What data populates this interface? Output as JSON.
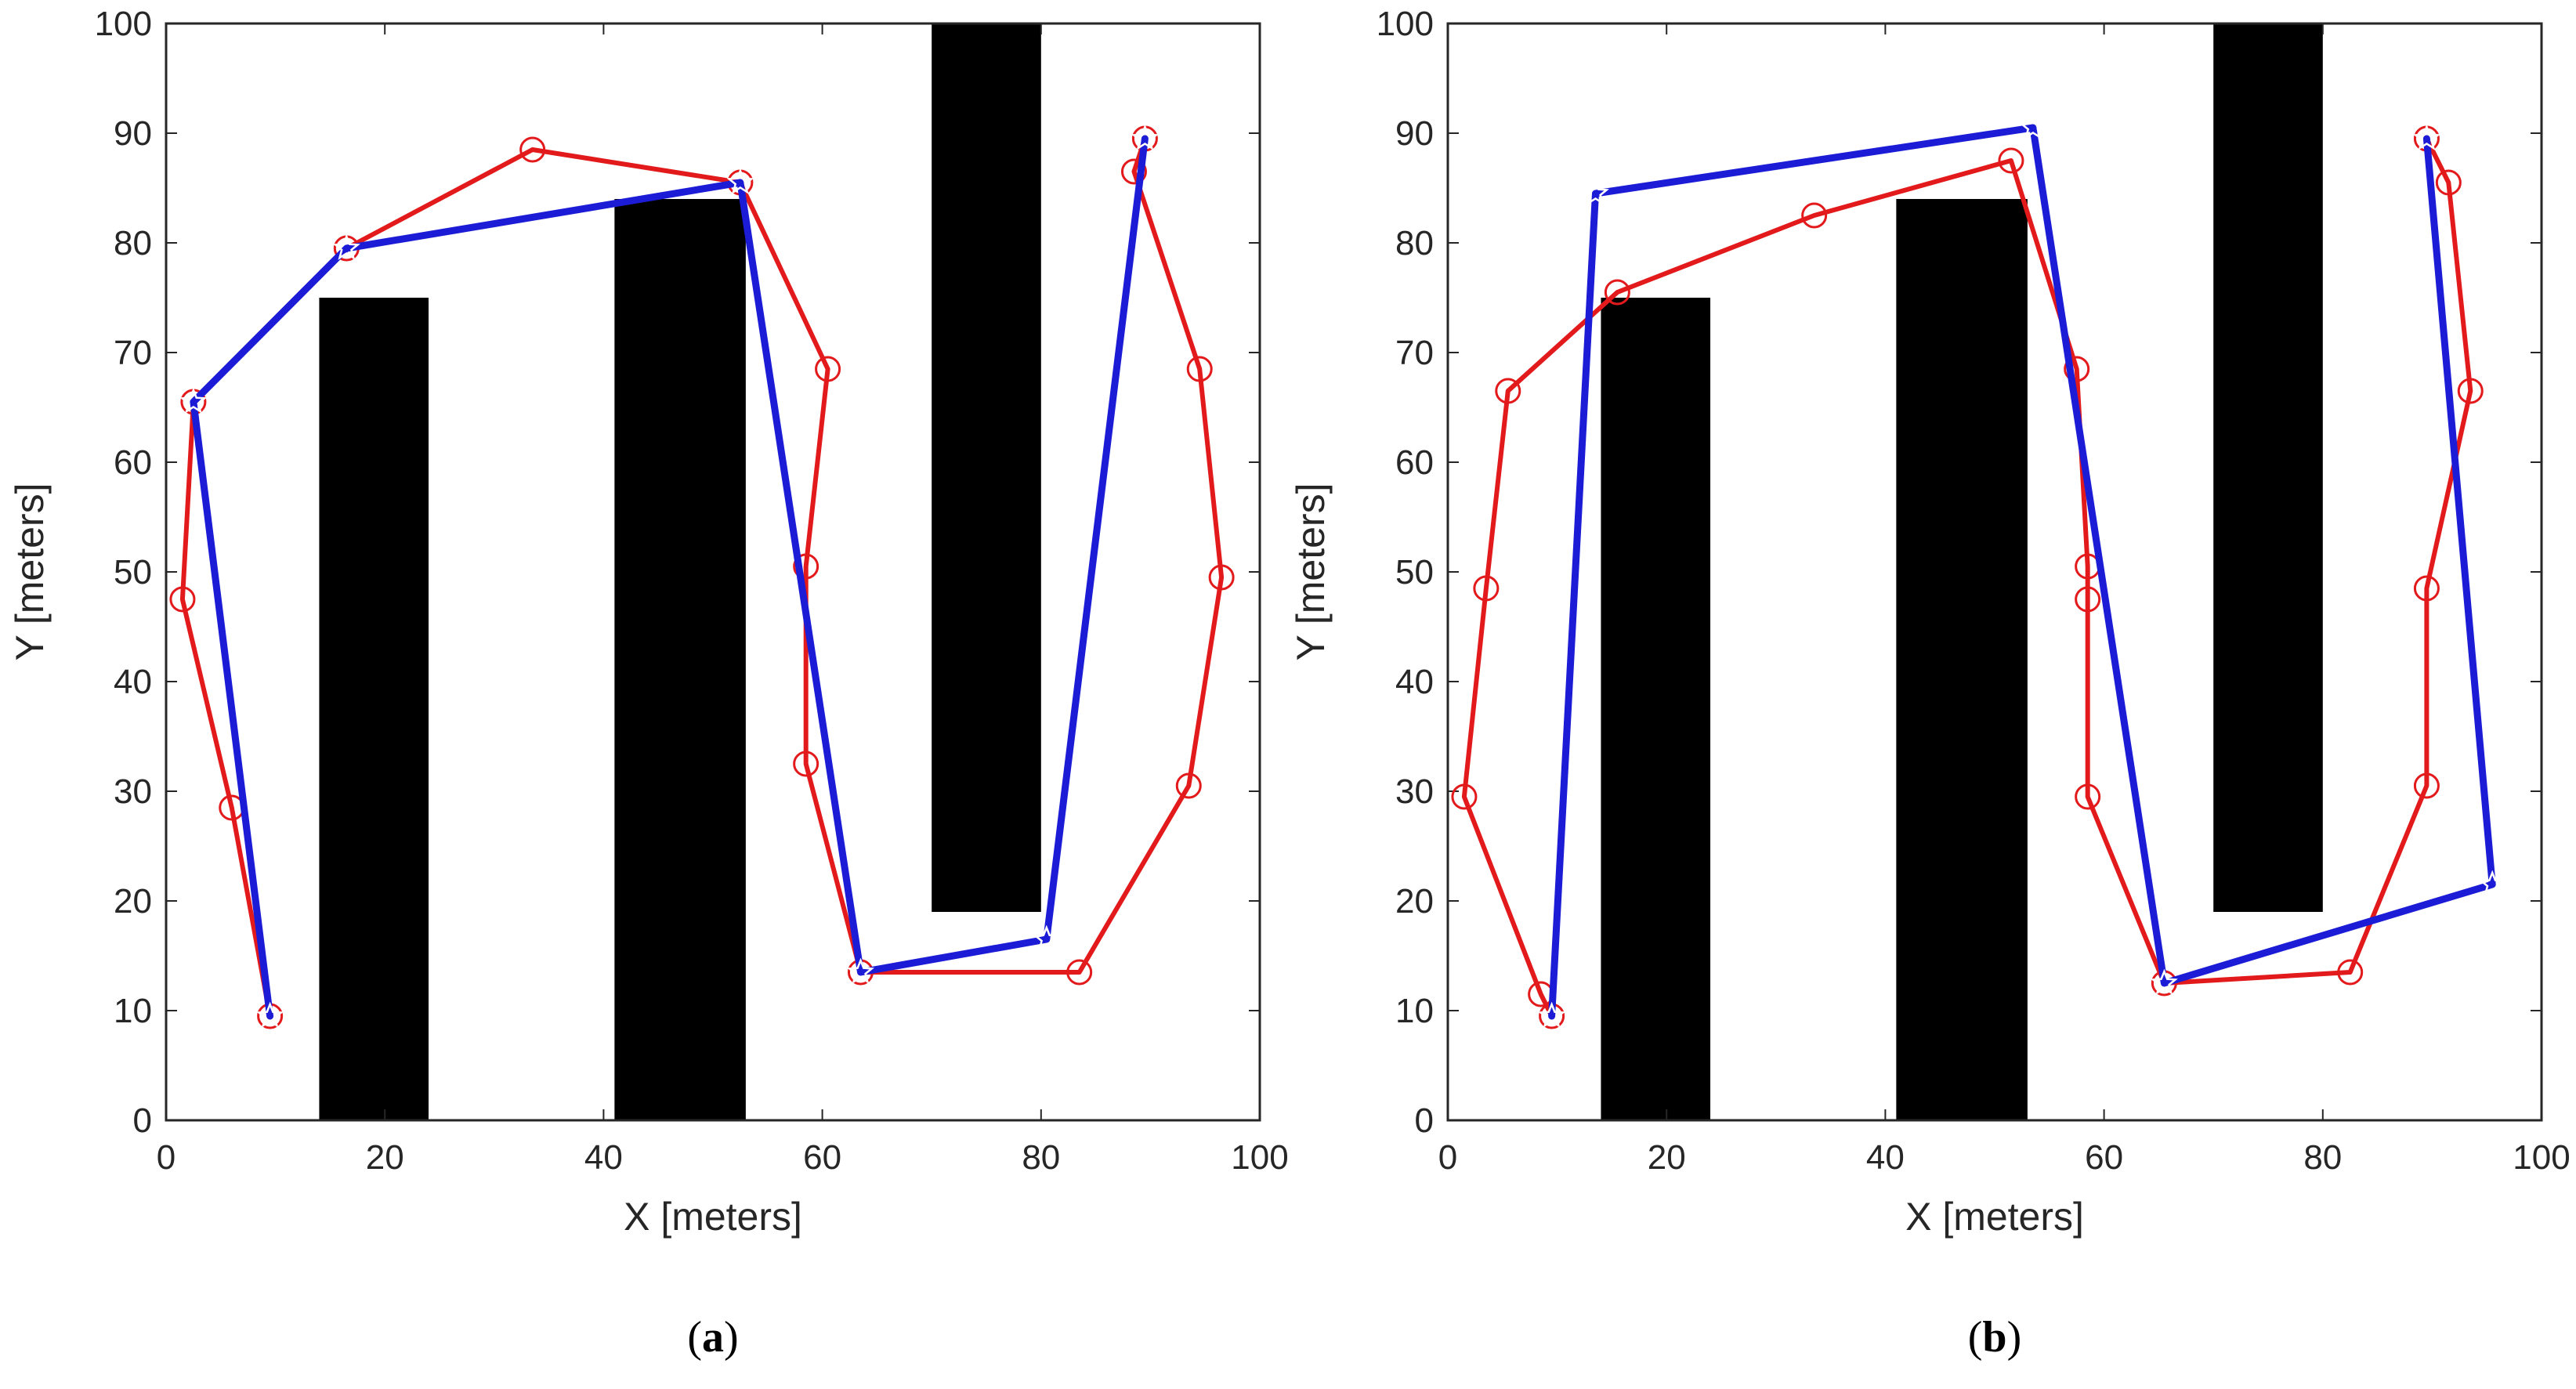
{
  "chart_data": [
    {
      "type": "line",
      "panel": "a",
      "caption_letter": "a",
      "caption_open": "(",
      "caption_close": ")",
      "xlabel": "X [meters]",
      "ylabel": "Y [meters]",
      "xlim": [
        0,
        100
      ],
      "ylim": [
        0,
        100
      ],
      "xticks": [
        0,
        20,
        40,
        60,
        80,
        100
      ],
      "yticks": [
        0,
        10,
        20,
        30,
        40,
        50,
        60,
        70,
        80,
        90,
        100
      ],
      "obstacles": [
        {
          "x0": 14,
          "x1": 24,
          "y0": 0,
          "y1": 75
        },
        {
          "x0": 41,
          "x1": 53,
          "y0": 0,
          "y1": 84
        },
        {
          "x0": 70,
          "x1": 80,
          "y0": 19,
          "y1": 100
        }
      ],
      "series": [
        {
          "name": "red-path",
          "color": "#e31a1c",
          "marker": "circle",
          "points": [
            [
              9.5,
              9.5
            ],
            [
              6,
              28.5
            ],
            [
              1.5,
              47.5
            ],
            [
              2.5,
              65.5
            ],
            [
              16.5,
              79.5
            ],
            [
              33.5,
              88.5
            ],
            [
              52.5,
              85.5
            ],
            [
              60.5,
              68.5
            ],
            [
              58.5,
              50.5
            ],
            [
              58.5,
              32.5
            ],
            [
              63.5,
              13.5
            ],
            [
              83.5,
              13.5
            ],
            [
              93.5,
              30.5
            ],
            [
              96.5,
              49.5
            ],
            [
              94.5,
              68.5
            ],
            [
              88.5,
              86.5
            ],
            [
              89.5,
              89.5
            ]
          ]
        },
        {
          "name": "blue-path",
          "color": "#1c1cd6",
          "marker": "star",
          "points": [
            [
              9.5,
              9.5
            ],
            [
              2.5,
              65.5
            ],
            [
              16.5,
              79.5
            ],
            [
              52.5,
              85.5
            ],
            [
              63.5,
              13.5
            ],
            [
              80.5,
              16.5
            ],
            [
              89.5,
              89.5
            ]
          ]
        }
      ]
    },
    {
      "type": "line",
      "panel": "b",
      "caption_letter": "b",
      "caption_open": "(",
      "caption_close": ")",
      "xlabel": "X [meters]",
      "ylabel": "Y [meters]",
      "xlim": [
        0,
        100
      ],
      "ylim": [
        0,
        100
      ],
      "xticks": [
        0,
        20,
        40,
        60,
        80,
        100
      ],
      "yticks": [
        0,
        10,
        20,
        30,
        40,
        50,
        60,
        70,
        80,
        90,
        100
      ],
      "obstacles": [
        {
          "x0": 14,
          "x1": 24,
          "y0": 0,
          "y1": 75
        },
        {
          "x0": 41,
          "x1": 53,
          "y0": 0,
          "y1": 84
        },
        {
          "x0": 70,
          "x1": 80,
          "y0": 19,
          "y1": 100
        }
      ],
      "series": [
        {
          "name": "red-path",
          "color": "#e31a1c",
          "marker": "circle",
          "points": [
            [
              9.5,
              9.5
            ],
            [
              8.5,
              11.5
            ],
            [
              1.5,
              29.5
            ],
            [
              3.5,
              48.5
            ],
            [
              5.5,
              66.5
            ],
            [
              15.5,
              75.5
            ],
            [
              33.5,
              82.5
            ],
            [
              51.5,
              87.5
            ],
            [
              57.5,
              68.5
            ],
            [
              58.5,
              50.5
            ],
            [
              58.5,
              47.5
            ],
            [
              58.5,
              29.5
            ],
            [
              65.5,
              12.5
            ],
            [
              82.5,
              13.5
            ],
            [
              89.5,
              30.5
            ],
            [
              89.5,
              48.5
            ],
            [
              93.5,
              66.5
            ],
            [
              91.5,
              85.5
            ],
            [
              89.5,
              89.5
            ]
          ]
        },
        {
          "name": "blue-path",
          "color": "#1c1cd6",
          "marker": "star",
          "points": [
            [
              9.5,
              9.5
            ],
            [
              13.5,
              84.5
            ],
            [
              53.5,
              90.5
            ],
            [
              65.5,
              12.5
            ],
            [
              95.5,
              21.5
            ],
            [
              89.5,
              89.5
            ]
          ]
        }
      ]
    }
  ]
}
